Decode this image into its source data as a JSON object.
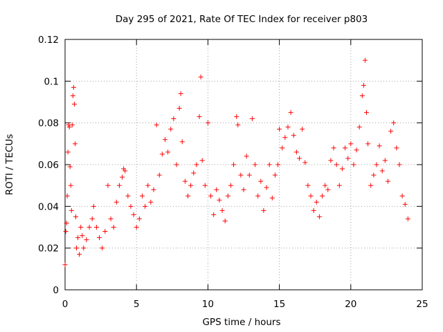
{
  "chart_data": {
    "type": "scatter",
    "title": "Day 295 of 2021, Rate Of TEC Index for receiver p803",
    "xlabel": "GPS time / hours",
    "ylabel": "ROTI / TECUs",
    "xlim": [
      0,
      25
    ],
    "ylim": [
      0,
      0.12
    ],
    "xticks": [
      0,
      5,
      10,
      15,
      20,
      25
    ],
    "xtick_labels": [
      "0",
      "5",
      "10",
      "15",
      "20",
      "25"
    ],
    "yticks": [
      0,
      0.02,
      0.04,
      0.06,
      0.08,
      0.1,
      0.12
    ],
    "ytick_labels": [
      "0",
      "0.02",
      "0.04",
      "0.06",
      "0.08",
      "0.1",
      "0.12"
    ],
    "grid": true,
    "legend": "none",
    "marker": "plus",
    "color": "#ff0000",
    "series": [
      {
        "points": [
          [
            0.0,
            0.012
          ],
          [
            0.05,
            0.028
          ],
          [
            0.1,
            0.032
          ],
          [
            0.15,
            0.045
          ],
          [
            0.2,
            0.066
          ],
          [
            0.25,
            0.079
          ],
          [
            0.3,
            0.078
          ],
          [
            0.35,
            0.059
          ],
          [
            0.4,
            0.05
          ],
          [
            0.45,
            0.038
          ],
          [
            0.5,
            0.079
          ],
          [
            0.55,
            0.093
          ],
          [
            0.6,
            0.097
          ],
          [
            0.65,
            0.089
          ],
          [
            0.7,
            0.07
          ],
          [
            0.75,
            0.035
          ],
          [
            0.8,
            0.02
          ],
          [
            0.9,
            0.025
          ],
          [
            1.0,
            0.017
          ],
          [
            1.1,
            0.03
          ],
          [
            1.2,
            0.026
          ],
          [
            1.3,
            0.02
          ],
          [
            1.5,
            0.024
          ],
          [
            1.7,
            0.03
          ],
          [
            1.9,
            0.034
          ],
          [
            2.0,
            0.04
          ],
          [
            2.2,
            0.03
          ],
          [
            2.4,
            0.025
          ],
          [
            2.6,
            0.02
          ],
          [
            2.8,
            0.028
          ],
          [
            3.0,
            0.05
          ],
          [
            3.2,
            0.034
          ],
          [
            3.4,
            0.03
          ],
          [
            3.6,
            0.042
          ],
          [
            3.8,
            0.05
          ],
          [
            4.0,
            0.054
          ],
          [
            4.1,
            0.058
          ],
          [
            4.2,
            0.057
          ],
          [
            4.4,
            0.045
          ],
          [
            4.6,
            0.04
          ],
          [
            4.8,
            0.036
          ],
          [
            5.0,
            0.03
          ],
          [
            5.2,
            0.034
          ],
          [
            5.4,
            0.045
          ],
          [
            5.6,
            0.04
          ],
          [
            5.8,
            0.05
          ],
          [
            6.0,
            0.042
          ],
          [
            6.2,
            0.048
          ],
          [
            6.4,
            0.079
          ],
          [
            6.6,
            0.055
          ],
          [
            6.8,
            0.065
          ],
          [
            7.0,
            0.072
          ],
          [
            7.2,
            0.066
          ],
          [
            7.4,
            0.077
          ],
          [
            7.6,
            0.082
          ],
          [
            7.8,
            0.06
          ],
          [
            8.0,
            0.087
          ],
          [
            8.1,
            0.094
          ],
          [
            8.2,
            0.071
          ],
          [
            8.4,
            0.052
          ],
          [
            8.6,
            0.045
          ],
          [
            8.8,
            0.05
          ],
          [
            9.0,
            0.056
          ],
          [
            9.2,
            0.06
          ],
          [
            9.4,
            0.083
          ],
          [
            9.5,
            0.102
          ],
          [
            9.6,
            0.062
          ],
          [
            9.8,
            0.05
          ],
          [
            10.0,
            0.08
          ],
          [
            10.2,
            0.045
          ],
          [
            10.4,
            0.036
          ],
          [
            10.6,
            0.048
          ],
          [
            10.8,
            0.043
          ],
          [
            11.0,
            0.038
          ],
          [
            11.2,
            0.033
          ],
          [
            11.4,
            0.045
          ],
          [
            11.6,
            0.05
          ],
          [
            11.8,
            0.06
          ],
          [
            12.0,
            0.083
          ],
          [
            12.1,
            0.079
          ],
          [
            12.3,
            0.055
          ],
          [
            12.5,
            0.048
          ],
          [
            12.7,
            0.064
          ],
          [
            12.9,
            0.055
          ],
          [
            13.1,
            0.082
          ],
          [
            13.3,
            0.06
          ],
          [
            13.5,
            0.045
          ],
          [
            13.7,
            0.052
          ],
          [
            13.9,
            0.038
          ],
          [
            14.1,
            0.049
          ],
          [
            14.3,
            0.06
          ],
          [
            14.5,
            0.044
          ],
          [
            14.7,
            0.055
          ],
          [
            14.9,
            0.06
          ],
          [
            15.0,
            0.077
          ],
          [
            15.2,
            0.068
          ],
          [
            15.4,
            0.073
          ],
          [
            15.6,
            0.078
          ],
          [
            15.8,
            0.085
          ],
          [
            16.0,
            0.074
          ],
          [
            16.2,
            0.066
          ],
          [
            16.4,
            0.063
          ],
          [
            16.6,
            0.077
          ],
          [
            16.8,
            0.061
          ],
          [
            17.0,
            0.05
          ],
          [
            17.2,
            0.045
          ],
          [
            17.4,
            0.038
          ],
          [
            17.6,
            0.042
          ],
          [
            17.8,
            0.035
          ],
          [
            18.0,
            0.045
          ],
          [
            18.2,
            0.05
          ],
          [
            18.4,
            0.048
          ],
          [
            18.6,
            0.062
          ],
          [
            18.8,
            0.068
          ],
          [
            19.0,
            0.06
          ],
          [
            19.2,
            0.05
          ],
          [
            19.4,
            0.058
          ],
          [
            19.6,
            0.068
          ],
          [
            19.8,
            0.063
          ],
          [
            20.0,
            0.07
          ],
          [
            20.2,
            0.06
          ],
          [
            20.4,
            0.067
          ],
          [
            20.6,
            0.078
          ],
          [
            20.8,
            0.093
          ],
          [
            20.9,
            0.098
          ],
          [
            21.0,
            0.11
          ],
          [
            21.1,
            0.085
          ],
          [
            21.2,
            0.07
          ],
          [
            21.4,
            0.05
          ],
          [
            21.6,
            0.055
          ],
          [
            21.8,
            0.06
          ],
          [
            22.0,
            0.069
          ],
          [
            22.2,
            0.057
          ],
          [
            22.4,
            0.062
          ],
          [
            22.6,
            0.052
          ],
          [
            22.8,
            0.076
          ],
          [
            23.0,
            0.08
          ],
          [
            23.2,
            0.068
          ],
          [
            23.4,
            0.06
          ],
          [
            23.6,
            0.045
          ],
          [
            23.8,
            0.041
          ],
          [
            24.0,
            0.034
          ]
        ]
      }
    ]
  }
}
